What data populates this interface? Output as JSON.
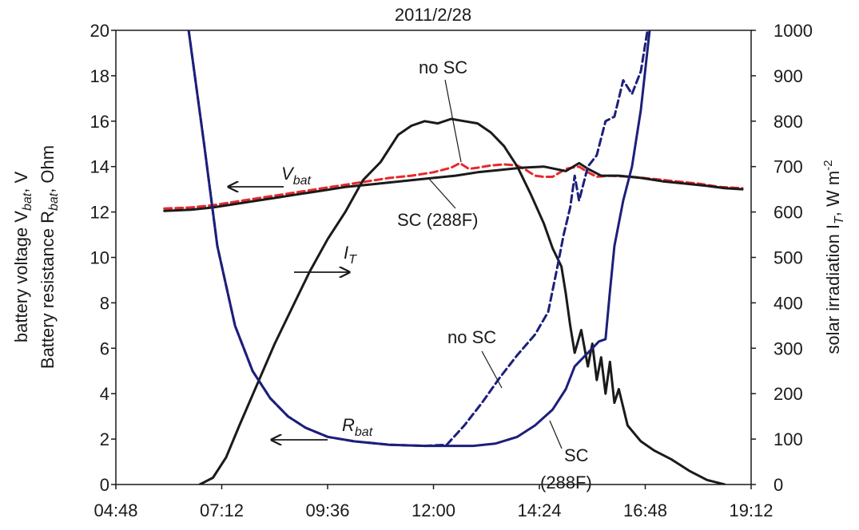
{
  "chart_data": {
    "type": "line",
    "title": "2011/2/28",
    "x_axis": {
      "ticks": [
        "04:48",
        "07:12",
        "09:36",
        "12:00",
        "14:24",
        "16:48",
        "19:12"
      ],
      "range_hours": [
        4.8,
        19.2
      ]
    },
    "y_left": {
      "label_line1": "battery voltage V",
      "label_line1_sub": "bat",
      "label_line1_unit": ", V",
      "label_line2": "Battery resistance R",
      "label_line2_sub": "bat",
      "label_line2_unit": ", Ohm",
      "range": [
        0,
        20
      ],
      "ticks": [
        "0",
        "2",
        "4",
        "6",
        "8",
        "10",
        "12",
        "14",
        "16",
        "18",
        "20"
      ]
    },
    "y_right": {
      "label": "solar irradiation I",
      "label_sub": "T",
      "label_unit": ", W m",
      "label_sup": "-2",
      "range": [
        0,
        1000
      ],
      "ticks": [
        "0",
        "100",
        "200",
        "300",
        "400",
        "500",
        "600",
        "700",
        "800",
        "900",
        "1000"
      ]
    },
    "series": [
      {
        "axis": "left",
        "color": "#e8282c",
        "dash": "dashed",
        "points": [
          [
            5.9,
            12.15
          ],
          [
            6.5,
            12.2
          ],
          [
            7.0,
            12.3
          ],
          [
            7.5,
            12.45
          ],
          [
            8.0,
            12.6
          ],
          [
            8.5,
            12.75
          ],
          [
            9.0,
            12.9
          ],
          [
            9.5,
            13.05
          ],
          [
            10.0,
            13.2
          ],
          [
            10.5,
            13.35
          ],
          [
            11.0,
            13.5
          ],
          [
            11.5,
            13.6
          ],
          [
            12.0,
            13.75
          ],
          [
            12.4,
            13.95
          ],
          [
            12.6,
            14.15
          ],
          [
            12.8,
            13.9
          ],
          [
            13.0,
            13.95
          ],
          [
            13.3,
            14.05
          ],
          [
            13.6,
            14.1
          ],
          [
            13.9,
            14.05
          ],
          [
            14.1,
            13.85
          ],
          [
            14.3,
            13.6
          ],
          [
            14.5,
            13.55
          ],
          [
            14.7,
            13.55
          ],
          [
            15.0,
            13.9
          ],
          [
            15.3,
            14.0
          ],
          [
            15.5,
            13.75
          ],
          [
            15.7,
            13.55
          ],
          [
            16.0,
            13.6
          ],
          [
            16.5,
            13.55
          ],
          [
            17.0,
            13.45
          ],
          [
            17.5,
            13.35
          ],
          [
            18.0,
            13.25
          ],
          [
            18.5,
            13.1
          ],
          [
            19.0,
            13.05
          ]
        ]
      },
      {
        "axis": "left",
        "color": "#1a1a1a",
        "dash": "solid",
        "points": [
          [
            5.9,
            12.05
          ],
          [
            6.5,
            12.1
          ],
          [
            7.0,
            12.2
          ],
          [
            7.5,
            12.35
          ],
          [
            8.0,
            12.5
          ],
          [
            8.5,
            12.65
          ],
          [
            9.0,
            12.8
          ],
          [
            9.5,
            12.95
          ],
          [
            10.0,
            13.1
          ],
          [
            10.5,
            13.2
          ],
          [
            11.0,
            13.3
          ],
          [
            11.5,
            13.4
          ],
          [
            12.0,
            13.5
          ],
          [
            12.5,
            13.6
          ],
          [
            13.0,
            13.75
          ],
          [
            13.5,
            13.85
          ],
          [
            14.0,
            13.95
          ],
          [
            14.5,
            14.0
          ],
          [
            15.0,
            13.8
          ],
          [
            15.3,
            14.15
          ],
          [
            15.5,
            13.9
          ],
          [
            15.8,
            13.6
          ],
          [
            16.2,
            13.6
          ],
          [
            16.7,
            13.5
          ],
          [
            17.2,
            13.35
          ],
          [
            17.7,
            13.25
          ],
          [
            18.2,
            13.15
          ],
          [
            18.6,
            13.05
          ],
          [
            19.0,
            13.0
          ]
        ]
      },
      {
        "axis": "right",
        "color": "#1a1a1a",
        "dash": "solid",
        "points": [
          [
            6.7,
            0
          ],
          [
            7.0,
            15
          ],
          [
            7.3,
            60
          ],
          [
            7.6,
            130
          ],
          [
            8.0,
            220
          ],
          [
            8.4,
            310
          ],
          [
            8.8,
            390
          ],
          [
            9.2,
            470
          ],
          [
            9.6,
            540
          ],
          [
            10.0,
            600
          ],
          [
            10.4,
            670
          ],
          [
            10.8,
            710
          ],
          [
            11.2,
            770
          ],
          [
            11.5,
            790
          ],
          [
            11.8,
            800
          ],
          [
            12.1,
            795
          ],
          [
            12.4,
            805
          ],
          [
            12.7,
            800
          ],
          [
            13.0,
            795
          ],
          [
            13.3,
            775
          ],
          [
            13.6,
            745
          ],
          [
            13.9,
            700
          ],
          [
            14.2,
            640
          ],
          [
            14.5,
            575
          ],
          [
            14.7,
            520
          ],
          [
            14.9,
            480
          ],
          [
            15.0,
            420
          ],
          [
            15.1,
            350
          ],
          [
            15.2,
            290
          ],
          [
            15.35,
            340
          ],
          [
            15.5,
            260
          ],
          [
            15.6,
            310
          ],
          [
            15.7,
            230
          ],
          [
            15.8,
            280
          ],
          [
            15.9,
            200
          ],
          [
            16.0,
            270
          ],
          [
            16.1,
            180
          ],
          [
            16.2,
            210
          ],
          [
            16.4,
            130
          ],
          [
            16.7,
            95
          ],
          [
            17.0,
            75
          ],
          [
            17.4,
            55
          ],
          [
            17.8,
            30
          ],
          [
            18.2,
            10
          ],
          [
            18.6,
            0
          ]
        ]
      },
      {
        "axis": "left",
        "color": "#1c1f7a",
        "dash": "solid",
        "points": [
          [
            6.45,
            20
          ],
          [
            6.8,
            15
          ],
          [
            7.1,
            10.5
          ],
          [
            7.5,
            7.0
          ],
          [
            7.9,
            5.0
          ],
          [
            8.3,
            3.8
          ],
          [
            8.7,
            3.0
          ],
          [
            9.1,
            2.5
          ],
          [
            9.6,
            2.1
          ],
          [
            10.2,
            1.9
          ],
          [
            11.0,
            1.75
          ],
          [
            11.8,
            1.7
          ],
          [
            12.4,
            1.7
          ],
          [
            12.9,
            1.7
          ],
          [
            13.4,
            1.8
          ],
          [
            13.9,
            2.1
          ],
          [
            14.3,
            2.6
          ],
          [
            14.7,
            3.3
          ],
          [
            15.0,
            4.2
          ],
          [
            15.2,
            5.2
          ],
          [
            15.4,
            5.6
          ],
          [
            15.6,
            6.0
          ],
          [
            15.75,
            6.3
          ],
          [
            15.9,
            6.4
          ],
          [
            16.0,
            8.5
          ],
          [
            16.1,
            10.5
          ],
          [
            16.3,
            12.5
          ],
          [
            16.5,
            14.0
          ],
          [
            16.7,
            16.5
          ],
          [
            16.9,
            20
          ]
        ]
      },
      {
        "axis": "left",
        "color": "#1c1f7a",
        "dash": "dashed",
        "points": [
          [
            6.45,
            20
          ],
          [
            6.8,
            15
          ],
          [
            7.1,
            10.5
          ],
          [
            7.5,
            7.0
          ],
          [
            7.9,
            5.0
          ],
          [
            8.3,
            3.8
          ],
          [
            8.7,
            3.0
          ],
          [
            9.1,
            2.5
          ],
          [
            9.6,
            2.1
          ],
          [
            10.2,
            1.9
          ],
          [
            11.0,
            1.75
          ],
          [
            11.8,
            1.7
          ],
          [
            12.3,
            1.75
          ],
          [
            12.7,
            2.6
          ],
          [
            13.1,
            3.6
          ],
          [
            13.5,
            4.7
          ],
          [
            13.9,
            5.7
          ],
          [
            14.3,
            6.6
          ],
          [
            14.6,
            7.6
          ],
          [
            14.8,
            9.5
          ],
          [
            14.95,
            11.0
          ],
          [
            15.1,
            12.2
          ],
          [
            15.2,
            13.6
          ],
          [
            15.3,
            12.5
          ],
          [
            15.5,
            14.0
          ],
          [
            15.7,
            14.5
          ],
          [
            15.9,
            16.0
          ],
          [
            16.1,
            16.2
          ],
          [
            16.3,
            17.8
          ],
          [
            16.5,
            17.2
          ],
          [
            16.7,
            18.2
          ],
          [
            16.85,
            20
          ]
        ]
      }
    ],
    "annotations": {
      "no_sc_top": "no SC",
      "v_label": "V",
      "v_sub": "bat",
      "sc_288f_mid": "SC (288F)",
      "i_label": "I",
      "i_sub": "T",
      "no_sc_bottom": "no SC",
      "r_label": "R",
      "r_sub": "bat",
      "sc_bottom": "SC",
      "f288_bottom": "(288F)"
    }
  }
}
